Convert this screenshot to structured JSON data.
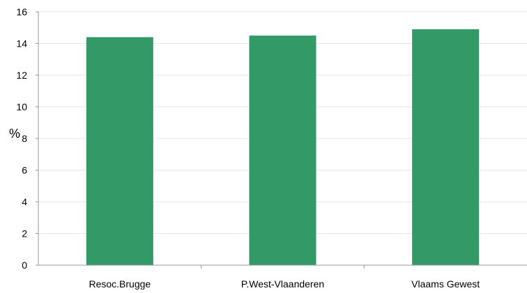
{
  "chart_data": {
    "type": "bar",
    "title": "",
    "xlabel": "",
    "ylabel": "%",
    "categories": [
      "Resoc.Brugge",
      "P.West-Vlaanderen",
      "Vlaams Gewest"
    ],
    "values": [
      14.4,
      14.5,
      14.9
    ],
    "ylim": [
      0,
      16
    ],
    "yticks": [
      "0",
      "2",
      "4",
      "6",
      "8",
      "10",
      "12",
      "14",
      "16"
    ],
    "grid": true,
    "legend": "none",
    "colors": {
      "bar": "#339966",
      "grid": "#e6e6e6",
      "axis": "#999999"
    }
  }
}
